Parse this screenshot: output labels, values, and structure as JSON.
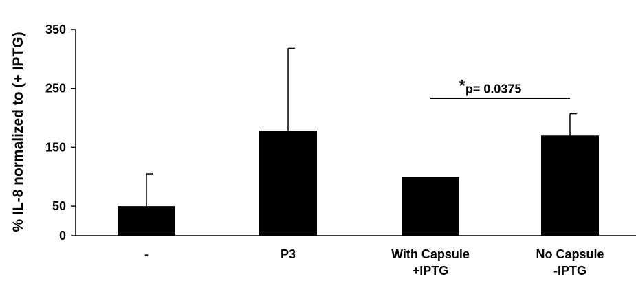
{
  "chart_data": {
    "type": "bar",
    "ylabel": "% IL-8 normalized to (+ IPTG)",
    "ylim": [
      0,
      350
    ],
    "yticks": [
      0,
      50,
      150,
      250,
      350
    ],
    "grid": false,
    "legend": "none",
    "categories": [
      {
        "line1": "-",
        "line2": ""
      },
      {
        "line1": "P3",
        "line2": ""
      },
      {
        "line1": "With Capsule",
        "line2": "+IPTG"
      },
      {
        "line1": "No Capsule",
        "line2": "-IPTG"
      }
    ],
    "values": [
      50,
      178,
      100,
      170
    ],
    "error_upper": [
      55,
      140,
      0,
      37
    ],
    "bar_color": "#000000",
    "annotation": {
      "star": "*",
      "text": "p= 0.0375",
      "from_category": 2,
      "to_category": 3,
      "y": 233
    }
  }
}
